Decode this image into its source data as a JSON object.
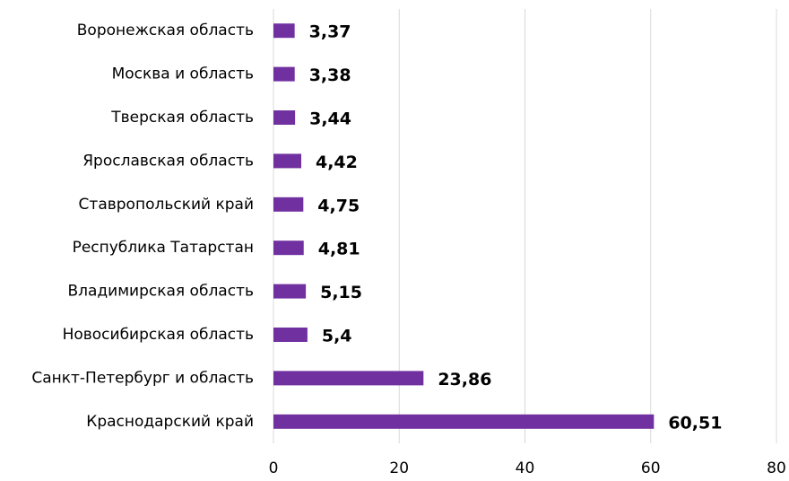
{
  "chart_data": {
    "type": "bar",
    "orientation": "horizontal",
    "categories": [
      "Воронежская область",
      "Москва и область",
      "Тверская область",
      "Ярославская область",
      "Ставропольский край",
      "Республика Татарстан",
      "Владимирская область",
      "Новосибирская область",
      "Санкт-Петербург и область",
      "Краснодарский край"
    ],
    "values": [
      3.37,
      3.38,
      3.44,
      4.42,
      4.75,
      4.81,
      5.15,
      5.4,
      23.86,
      60.51
    ],
    "value_labels": [
      "3,37",
      "3,38",
      "3,44",
      "4,42",
      "4,75",
      "4,81",
      "5,15",
      "5,4",
      "23,86",
      "60,51"
    ],
    "color": "#7030a0",
    "xlim": [
      0,
      80
    ],
    "xticks": [
      0,
      20,
      40,
      60,
      80
    ],
    "grid": true
  }
}
